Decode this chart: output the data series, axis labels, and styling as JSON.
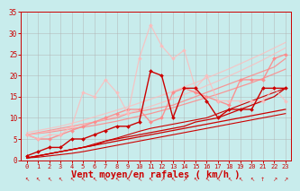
{
  "background_color": "#c8ecec",
  "grid_color": "#b0b0b0",
  "xlabel": "Vent moyen/en rafales ( km/h )",
  "xlabel_color": "#cc0000",
  "xlabel_fontsize": 7.5,
  "tick_color": "#cc0000",
  "xlim": [
    -0.5,
    23.5
  ],
  "ylim": [
    0,
    35
  ],
  "yticks": [
    0,
    5,
    10,
    15,
    20,
    25,
    30,
    35
  ],
  "xticks": [
    0,
    1,
    2,
    3,
    4,
    5,
    6,
    7,
    8,
    9,
    10,
    11,
    12,
    13,
    14,
    15,
    16,
    17,
    18,
    19,
    20,
    21,
    22,
    23
  ],
  "series": [
    {
      "comment": "dark red jagged line with markers - most volatile",
      "x": [
        0,
        1,
        2,
        3,
        4,
        5,
        6,
        7,
        8,
        9,
        10,
        11,
        12,
        13,
        14,
        15,
        16,
        17,
        18,
        19,
        20,
        21,
        22,
        23
      ],
      "y": [
        1,
        2,
        3,
        3,
        5,
        5,
        6,
        7,
        8,
        8,
        9,
        21,
        20,
        10,
        17,
        17,
        14,
        10,
        12,
        12,
        12,
        17,
        17,
        17
      ],
      "color": "#cc0000",
      "linewidth": 1.0,
      "marker": "D",
      "markersize": 2.0,
      "alpha": 1.0,
      "zorder": 5
    },
    {
      "comment": "dark red nearly linear line 1",
      "x": [
        0,
        1,
        2,
        3,
        4,
        5,
        6,
        7,
        8,
        9,
        10,
        11,
        12,
        13,
        14,
        15,
        16,
        17,
        18,
        19,
        20,
        21,
        22,
        23
      ],
      "y": [
        0.5,
        1,
        1.5,
        2,
        2.5,
        3,
        3.5,
        4,
        4.5,
        5,
        5.5,
        6,
        6.5,
        7,
        7.5,
        8,
        8.5,
        9,
        9.5,
        10,
        10.5,
        11,
        11.5,
        12
      ],
      "color": "#cc0000",
      "linewidth": 0.9,
      "marker": null,
      "markersize": 0,
      "alpha": 1.0,
      "zorder": 3
    },
    {
      "comment": "dark red nearly linear line 2 - steeper",
      "x": [
        0,
        1,
        2,
        3,
        4,
        5,
        6,
        7,
        8,
        9,
        10,
        11,
        12,
        13,
        14,
        15,
        16,
        17,
        18,
        19,
        20,
        21,
        22,
        23
      ],
      "y": [
        0.5,
        1,
        1.5,
        2,
        2.5,
        3,
        3.5,
        4.5,
        5,
        5.5,
        6,
        6.5,
        7,
        7.5,
        8,
        9,
        9.5,
        10,
        11,
        12,
        13,
        14,
        15,
        17
      ],
      "color": "#cc0000",
      "linewidth": 0.9,
      "marker": null,
      "markersize": 0,
      "alpha": 1.0,
      "zorder": 3
    },
    {
      "comment": "dark red linear line 3",
      "x": [
        0,
        1,
        2,
        3,
        4,
        5,
        6,
        7,
        8,
        9,
        10,
        11,
        12,
        13,
        14,
        15,
        16,
        17,
        18,
        19,
        20,
        21,
        22,
        23
      ],
      "y": [
        0.5,
        1,
        1.5,
        2,
        2.5,
        3,
        3.8,
        4.5,
        5.2,
        6,
        6.8,
        7.5,
        8,
        8.5,
        9,
        9.5,
        10,
        11,
        12,
        13,
        14,
        15,
        16,
        17
      ],
      "color": "#cc0000",
      "linewidth": 0.8,
      "marker": null,
      "markersize": 0,
      "alpha": 1.0,
      "zorder": 3
    },
    {
      "comment": "dark red flat/gentle slope line",
      "x": [
        0,
        1,
        2,
        3,
        4,
        5,
        6,
        7,
        8,
        9,
        10,
        11,
        12,
        13,
        14,
        15,
        16,
        17,
        18,
        19,
        20,
        21,
        22,
        23
      ],
      "y": [
        0.5,
        0.7,
        1.0,
        1.3,
        1.6,
        2,
        2.5,
        3,
        3.5,
        4,
        4.5,
        5,
        5.5,
        6,
        6.5,
        7,
        7.5,
        8,
        8.5,
        9,
        9.5,
        10,
        10.5,
        11
      ],
      "color": "#cc0000",
      "linewidth": 0.8,
      "marker": null,
      "markersize": 0,
      "alpha": 1.0,
      "zorder": 3
    },
    {
      "comment": "light pink/salmon jagged line with markers",
      "x": [
        0,
        1,
        2,
        3,
        4,
        5,
        6,
        7,
        8,
        9,
        10,
        11,
        12,
        13,
        14,
        15,
        16,
        17,
        18,
        19,
        20,
        21,
        22,
        23
      ],
      "y": [
        6,
        5,
        5,
        6,
        7,
        8,
        9,
        10,
        11,
        12,
        12,
        9,
        10,
        16,
        17,
        16,
        15,
        14,
        13,
        19,
        19,
        19,
        24,
        25
      ],
      "color": "#ff8888",
      "linewidth": 1.0,
      "marker": "D",
      "markersize": 2.0,
      "alpha": 0.9,
      "zorder": 4
    },
    {
      "comment": "light pink linear - upper bound",
      "x": [
        0,
        1,
        2,
        3,
        4,
        5,
        6,
        7,
        8,
        9,
        10,
        11,
        12,
        13,
        14,
        15,
        16,
        17,
        18,
        19,
        20,
        21,
        22,
        23
      ],
      "y": [
        6,
        6.5,
        7,
        7.5,
        8,
        8.5,
        9,
        9.5,
        10,
        11,
        11.5,
        12,
        12.5,
        13,
        14,
        15,
        16,
        17,
        18,
        19,
        20,
        21,
        22,
        24
      ],
      "color": "#ff8888",
      "linewidth": 0.9,
      "marker": null,
      "markersize": 0,
      "alpha": 0.85,
      "zorder": 2
    },
    {
      "comment": "light pink linear - lower",
      "x": [
        0,
        1,
        2,
        3,
        4,
        5,
        6,
        7,
        8,
        9,
        10,
        11,
        12,
        13,
        14,
        15,
        16,
        17,
        18,
        19,
        20,
        21,
        22,
        23
      ],
      "y": [
        6,
        6.3,
        6.6,
        7,
        7.4,
        7.8,
        8.2,
        8.7,
        9.2,
        9.8,
        10.4,
        11,
        11.7,
        12.4,
        13.2,
        14,
        14.8,
        15.6,
        16.5,
        17.4,
        18.3,
        19.3,
        20.4,
        21.5
      ],
      "color": "#ff8888",
      "linewidth": 0.9,
      "marker": null,
      "markersize": 0,
      "alpha": 0.85,
      "zorder": 2
    },
    {
      "comment": "very light pink jagged with markers - high peaks",
      "x": [
        0,
        1,
        2,
        3,
        4,
        5,
        6,
        7,
        8,
        9,
        10,
        11,
        12,
        13,
        14,
        15,
        16,
        17,
        18,
        19,
        20,
        21,
        22,
        23
      ],
      "y": [
        6,
        5,
        6,
        6,
        8,
        16,
        15,
        19,
        16,
        11,
        24,
        32,
        27,
        24,
        26,
        17,
        20,
        14,
        14,
        14,
        14,
        14,
        17,
        14
      ],
      "color": "#ffbbbb",
      "linewidth": 0.9,
      "marker": "D",
      "markersize": 2.0,
      "alpha": 0.8,
      "zorder": 4
    },
    {
      "comment": "very light pink upper linear",
      "x": [
        0,
        1,
        2,
        3,
        4,
        5,
        6,
        7,
        8,
        9,
        10,
        11,
        12,
        13,
        14,
        15,
        16,
        17,
        18,
        19,
        20,
        21,
        22,
        23
      ],
      "y": [
        6.5,
        7,
        7.5,
        8,
        8.7,
        9.4,
        10.2,
        11,
        11.8,
        12.6,
        13.5,
        14.4,
        15.3,
        16.3,
        17.3,
        18.3,
        19.4,
        20.5,
        21.6,
        22.8,
        24,
        25.2,
        26.5,
        27.8
      ],
      "color": "#ffbbbb",
      "linewidth": 0.9,
      "marker": null,
      "markersize": 0,
      "alpha": 0.75,
      "zorder": 2
    },
    {
      "comment": "very light pink lower linear",
      "x": [
        0,
        1,
        2,
        3,
        4,
        5,
        6,
        7,
        8,
        9,
        10,
        11,
        12,
        13,
        14,
        15,
        16,
        17,
        18,
        19,
        20,
        21,
        22,
        23
      ],
      "y": [
        6,
        6.4,
        6.8,
        7.3,
        7.8,
        8.4,
        9,
        9.7,
        10.4,
        11.1,
        11.9,
        12.7,
        13.6,
        14.5,
        15.5,
        16.5,
        17.6,
        18.7,
        19.9,
        21.1,
        22.4,
        23.7,
        25.1,
        26.5
      ],
      "color": "#ffbbbb",
      "linewidth": 0.9,
      "marker": null,
      "markersize": 0,
      "alpha": 0.75,
      "zorder": 2
    }
  ]
}
